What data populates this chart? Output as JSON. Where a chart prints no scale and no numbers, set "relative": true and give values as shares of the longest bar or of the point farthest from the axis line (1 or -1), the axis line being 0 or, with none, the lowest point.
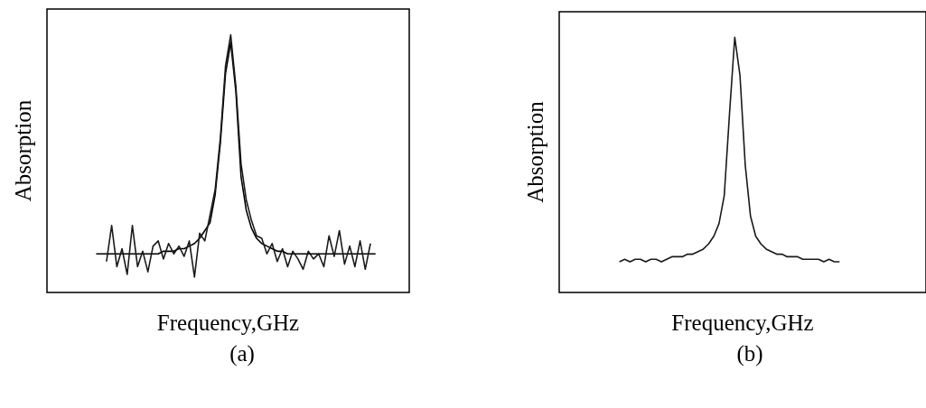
{
  "chart_data": [
    {
      "type": "line",
      "xlabel": "Frequency,GHz",
      "ylabel": "Absorption",
      "annotations": [
        "(a)"
      ],
      "relative": true,
      "categories": [
        null,
        null,
        null,
        null,
        null,
        null,
        null,
        null,
        null,
        null,
        null,
        null,
        null,
        null,
        null,
        null,
        null,
        null,
        null,
        null,
        null,
        null,
        null,
        null,
        null,
        null,
        null,
        null,
        null,
        null,
        null,
        null,
        null,
        null,
        null,
        null,
        null,
        null,
        null,
        null,
        null,
        null,
        null,
        null,
        null,
        null,
        null,
        null,
        null,
        null,
        null,
        null,
        null,
        null,
        null,
        null,
        null,
        null,
        null,
        null,
        null,
        null,
        null,
        null,
        null,
        null,
        null,
        null,
        null,
        null
      ],
      "series": [
        {
          "color": "#1a1a1a",
          "values": [
            null,
            null,
            null,
            null,
            null,
            null,
            null,
            null,
            null,
            null,
            null,
            0.12,
            0.26,
            0.1,
            0.17,
            0.07,
            0.26,
            0.1,
            0.16,
            0.08,
            0.18,
            0.2,
            0.13,
            0.19,
            0.15,
            0.18,
            0.14,
            0.2,
            0.06,
            0.23,
            0.2,
            0.3,
            0.4,
            0.6,
            0.88,
            1.0,
            0.8,
            0.5,
            0.36,
            0.28,
            0.22,
            0.21,
            0.15,
            0.19,
            0.12,
            0.17,
            0.1,
            0.16,
            0.13,
            0.09,
            0.16,
            0.13,
            0.15,
            0.1,
            0.22,
            0.14,
            0.24,
            0.11,
            0.18,
            0.1,
            0.2,
            0.09,
            0.19,
            null,
            null,
            null,
            null,
            null,
            null,
            null
          ]
        },
        {
          "color": "#000000",
          "values": [
            null,
            null,
            null,
            null,
            null,
            null,
            null,
            null,
            null,
            0.15,
            0.15,
            0.15,
            0.15,
            0.15,
            0.15,
            0.15,
            0.15,
            0.15,
            0.15,
            0.15,
            0.15,
            0.15,
            0.16,
            0.16,
            0.16,
            0.17,
            0.17,
            0.18,
            0.19,
            0.21,
            0.24,
            0.27,
            0.38,
            0.58,
            0.85,
            0.97,
            0.78,
            0.45,
            0.32,
            0.25,
            0.21,
            0.19,
            0.18,
            0.17,
            0.16,
            0.16,
            0.15,
            0.15,
            0.15,
            0.15,
            0.15,
            0.15,
            0.15,
            0.15,
            0.15,
            0.15,
            0.15,
            0.15,
            0.15,
            0.15,
            0.15,
            0.15,
            0.15,
            0.15,
            null,
            null,
            null,
            null,
            null,
            null
          ]
        }
      ]
    },
    {
      "type": "line",
      "xlabel": "Frequency,GHz",
      "ylabel": "Absorption",
      "annotations": [
        "(b)"
      ],
      "relative": true,
      "categories": [
        null,
        null,
        null,
        null,
        null,
        null,
        null,
        null,
        null,
        null,
        null,
        null,
        null,
        null,
        null,
        null,
        null,
        null,
        null,
        null,
        null,
        null,
        null,
        null,
        null,
        null,
        null,
        null,
        null,
        null,
        null,
        null,
        null,
        null,
        null,
        null,
        null,
        null,
        null,
        null,
        null,
        null,
        null,
        null,
        null,
        null,
        null,
        null,
        null,
        null,
        null,
        null,
        null,
        null,
        null,
        null,
        null,
        null,
        null,
        null,
        null,
        null,
        null,
        null,
        null,
        null,
        null,
        null,
        null,
        null
      ],
      "series": [
        {
          "color": "#1a1a1a",
          "values": [
            null,
            null,
            null,
            null,
            null,
            null,
            null,
            null,
            null,
            null,
            null,
            0.12,
            0.13,
            0.12,
            0.13,
            0.13,
            0.12,
            0.13,
            0.13,
            0.12,
            0.13,
            0.14,
            0.14,
            0.14,
            0.15,
            0.15,
            0.16,
            0.17,
            0.19,
            0.22,
            0.27,
            0.38,
            0.7,
            1.0,
            0.85,
            0.5,
            0.3,
            0.22,
            0.19,
            0.17,
            0.16,
            0.15,
            0.15,
            0.14,
            0.14,
            0.14,
            0.13,
            0.13,
            0.13,
            0.13,
            0.12,
            0.13,
            0.12,
            0.12,
            null,
            null,
            null,
            null,
            null,
            null,
            null,
            null,
            null,
            null,
            null,
            null,
            null,
            null,
            null,
            null
          ]
        }
      ]
    }
  ]
}
